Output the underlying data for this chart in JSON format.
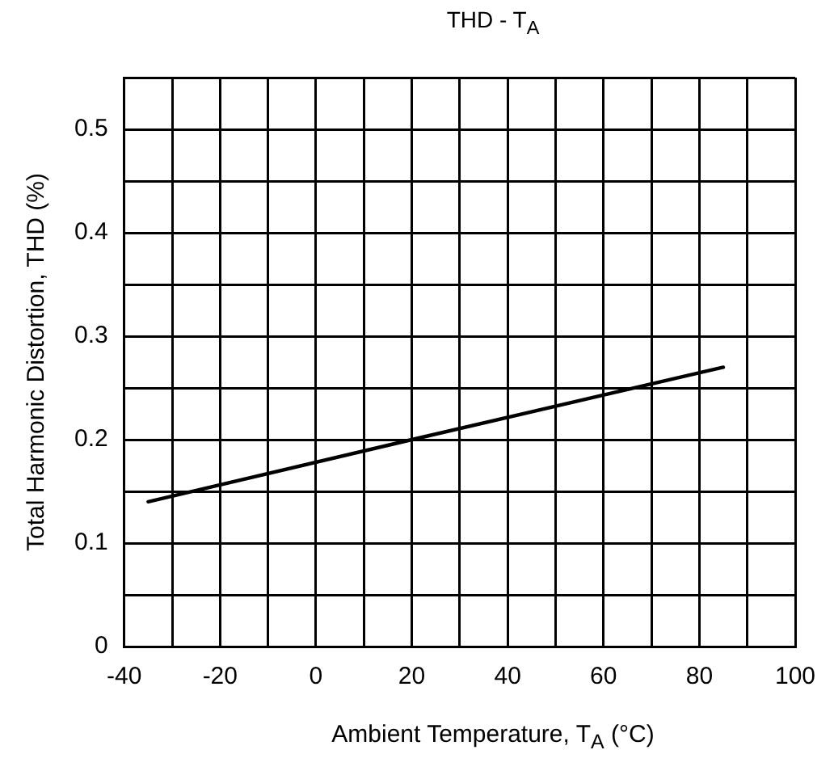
{
  "chart_data": {
    "type": "line",
    "title": "THD - T$_{A}$",
    "xlabel": "Ambient Temperature, T$_{A}$ (°C)",
    "ylabel": "Total Harmonic Distortion, THD (%)",
    "x": [
      -35,
      20,
      85
    ],
    "series": [
      {
        "color": "#000000",
        "values": [
          0.14,
          0.2,
          0.27
        ]
      }
    ],
    "xlim": [
      -40,
      100
    ],
    "xticks": [
      -40,
      {
        "value": -30,
        "label": null
      },
      -20,
      {
        "value": -10,
        "label": null
      },
      0,
      {
        "value": 10,
        "label": null
      },
      20,
      {
        "value": 30,
        "label": null
      },
      40,
      {
        "value": 50,
        "label": null
      },
      60,
      {
        "value": 70,
        "label": null
      },
      80,
      {
        "value": 90,
        "label": null
      },
      100
    ],
    "ylim": [
      0,
      0.55
    ],
    "yticks": [
      0,
      {
        "value": 0.05,
        "label": null
      },
      0.1,
      {
        "value": 0.15,
        "label": null
      },
      0.2,
      {
        "value": 0.25,
        "label": null
      },
      0.3,
      {
        "value": 0.35,
        "label": null
      },
      0.4,
      {
        "value": 0.45,
        "label": null
      },
      0.5,
      {
        "value": 0.55,
        "label": null
      }
    ],
    "grid": true,
    "legend": false,
    "marker": "none",
    "line_style": "solid"
  }
}
